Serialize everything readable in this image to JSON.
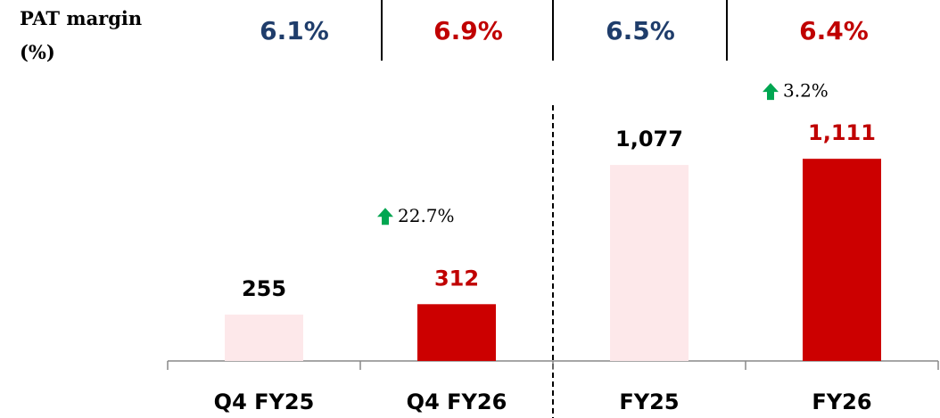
{
  "chart_data": {
    "type": "bar",
    "categories": [
      "Q4 FY25",
      "Q4 FY26",
      "FY25",
      "FY26"
    ],
    "values": [
      255,
      312,
      1077,
      1111
    ],
    "value_labels": [
      "255",
      "312",
      "1,077",
      "1,111"
    ],
    "colors": [
      "#fde8ea",
      "#cc0000",
      "#fde8ea",
      "#cc0000"
    ],
    "label_colors": [
      "#000000",
      "#c00000",
      "#000000",
      "#c00000"
    ],
    "ylim": [
      0,
      1200
    ],
    "growth": {
      "values": [
        null,
        22.7,
        null,
        3.2
      ],
      "value_labels": [
        null,
        "22.7%",
        null,
        "3.2%"
      ],
      "color": "#00a651"
    },
    "margin": {
      "label": "PAT margin (%)",
      "values": [
        6.1,
        6.9,
        6.5,
        6.4
      ],
      "value_labels": [
        "6.1%",
        "6.9%",
        "6.5%",
        "6.4%"
      ],
      "colors": [
        "#1f3d6b",
        "#c00000",
        "#1f3d6b",
        "#c00000"
      ]
    }
  }
}
